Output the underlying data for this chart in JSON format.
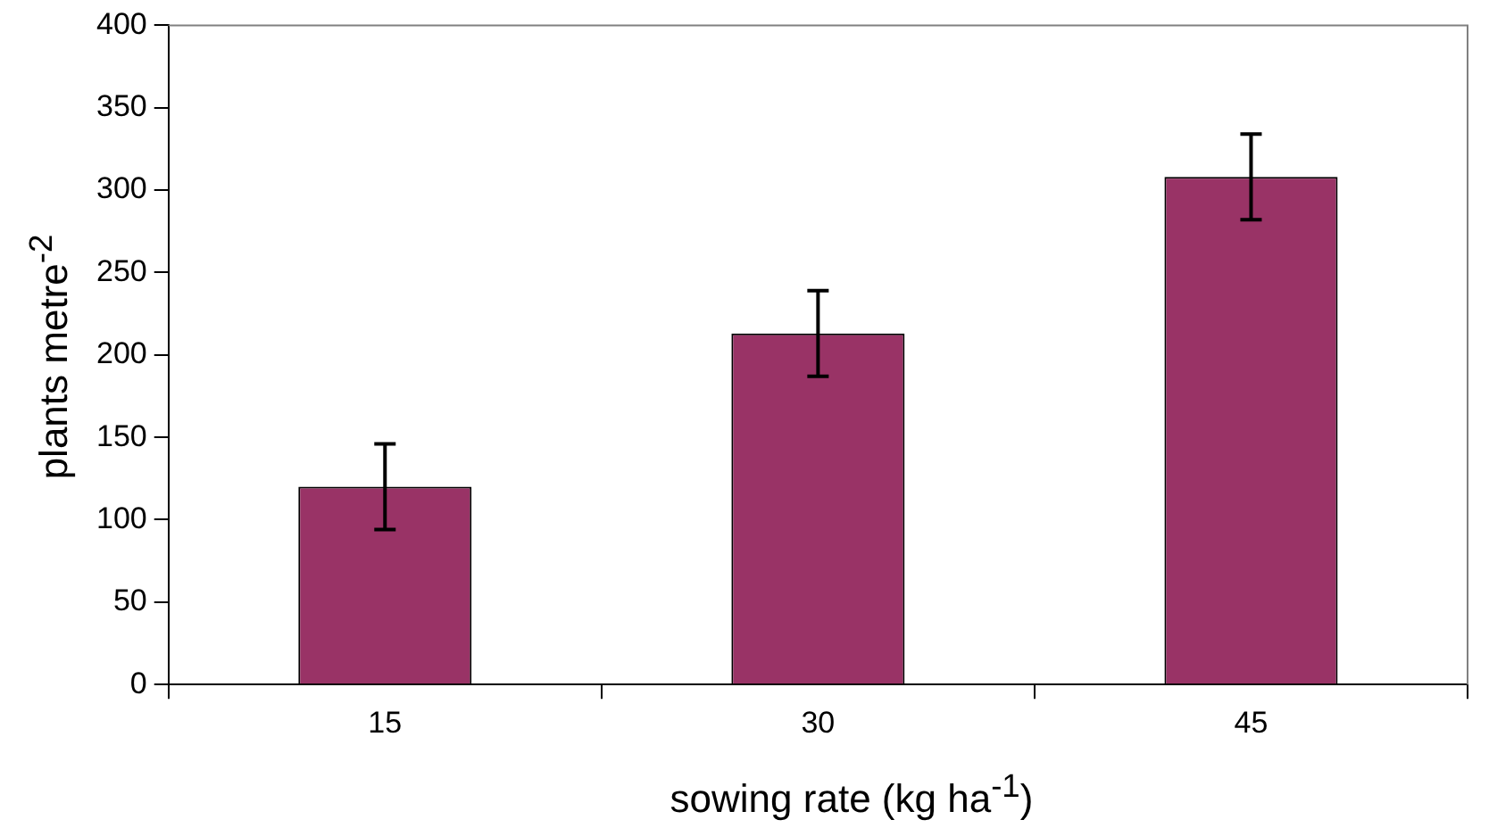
{
  "chart_data": {
    "type": "bar",
    "xlabel": "sowing rate (kg ha$^{-1}$)",
    "ylabel": "plants metre$^{-2}$",
    "categories": [
      "15",
      "30",
      "45"
    ],
    "values": [
      120,
      213,
      308
    ],
    "errors": [
      26,
      26,
      26
    ],
    "color": "#993366",
    "ylim": [
      0,
      400
    ],
    "yticks": [
      0,
      50,
      100,
      150,
      200,
      250,
      300,
      350,
      400
    ],
    "grid": false,
    "legend": false
  }
}
